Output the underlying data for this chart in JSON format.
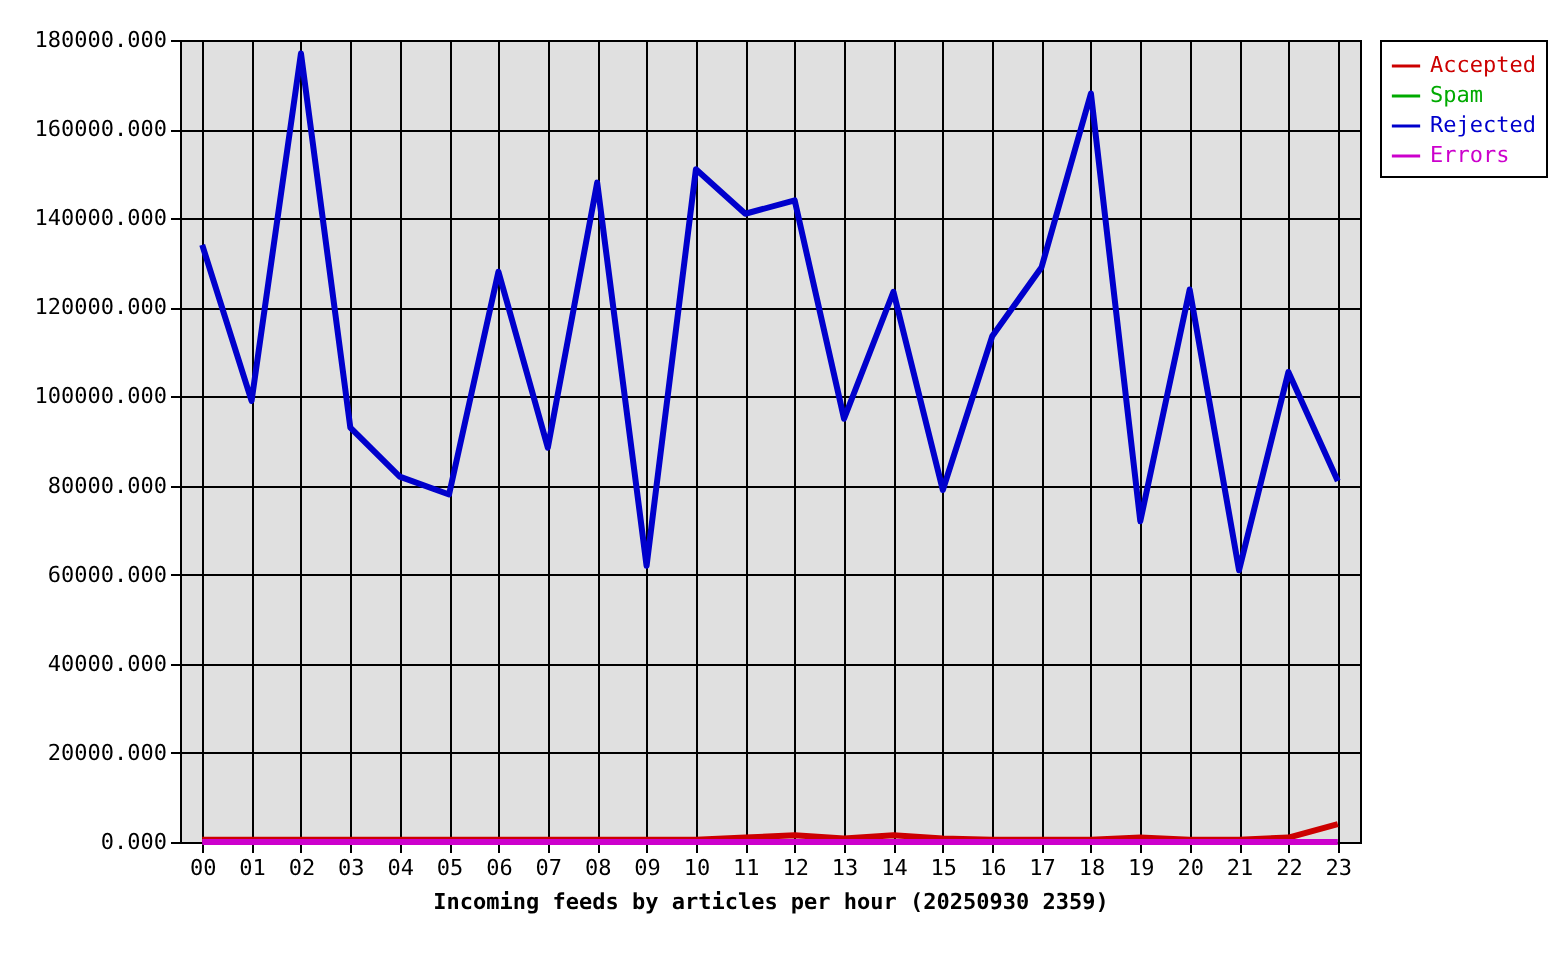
{
  "chart_data": {
    "type": "line",
    "xlabel": "Incoming feeds by articles per hour (20250930 2359)",
    "categories": [
      "00",
      "01",
      "02",
      "03",
      "04",
      "05",
      "06",
      "07",
      "08",
      "09",
      "10",
      "11",
      "12",
      "13",
      "14",
      "15",
      "16",
      "17",
      "18",
      "19",
      "20",
      "21",
      "22",
      "23"
    ],
    "series": [
      {
        "name": "Accepted",
        "color": "#cc0000",
        "values": [
          500,
          500,
          500,
          500,
          500,
          500,
          500,
          500,
          500,
          500,
          500,
          1000,
          1500,
          800,
          1500,
          800,
          500,
          500,
          500,
          1000,
          500,
          500,
          1000,
          4000
        ]
      },
      {
        "name": "Spam",
        "color": "#00aa00",
        "values": [
          null,
          null,
          null,
          null,
          null,
          null,
          null,
          null,
          null,
          null,
          null,
          null,
          null,
          null,
          null,
          null,
          null,
          null,
          null,
          null,
          null,
          null,
          null,
          null
        ]
      },
      {
        "name": "Rejected",
        "color": "#0000cc",
        "values": [
          134000,
          99000,
          177000,
          93000,
          82000,
          78000,
          128000,
          88500,
          148000,
          62000,
          151000,
          141000,
          144000,
          95000,
          123500,
          79000,
          113500,
          129000,
          168000,
          72000,
          124000,
          61000,
          105500,
          81000
        ]
      },
      {
        "name": "Errors",
        "color": "#cc00cc",
        "values": [
          0,
          0,
          0,
          0,
          0,
          0,
          0,
          0,
          0,
          0,
          0,
          0,
          0,
          0,
          0,
          0,
          0,
          0,
          0,
          0,
          0,
          0,
          0,
          0
        ]
      }
    ],
    "ylim": [
      0,
      180000
    ],
    "yticks": [
      {
        "value": 0,
        "label": "0.000"
      },
      {
        "value": 20000,
        "label": "20000.000"
      },
      {
        "value": 40000,
        "label": "40000.000"
      },
      {
        "value": 60000,
        "label": "60000.000"
      },
      {
        "value": 80000,
        "label": "80000.000"
      },
      {
        "value": 100000,
        "label": "100000.000"
      },
      {
        "value": 120000,
        "label": "120000.000"
      },
      {
        "value": 140000,
        "label": "140000.000"
      },
      {
        "value": 160000,
        "label": "160000.000"
      },
      {
        "value": 180000,
        "label": "180000.000"
      }
    ],
    "grid": true,
    "legend": "top right",
    "line_style": "solid"
  }
}
